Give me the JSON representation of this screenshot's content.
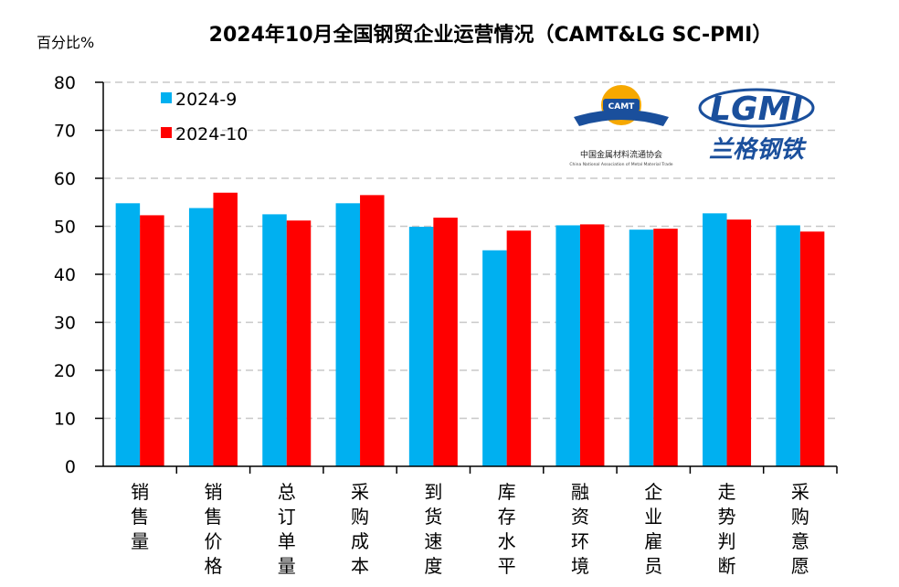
{
  "chart_data": {
    "type": "bar",
    "title": "2024年10月全国钢贸企业运营情况（CAMT&LG SC-PMI）",
    "ylabel": "百分比%",
    "xlabel": "",
    "ylim": [
      0,
      80
    ],
    "yticks": [
      0,
      10,
      20,
      30,
      40,
      50,
      60,
      70,
      80
    ],
    "grid": true,
    "legend_position": "top-left",
    "categories": [
      "销售量",
      "销售价格",
      "总订单量",
      "采购成本",
      "到货速度",
      "库存水平",
      "融资环境",
      "企业雇员",
      "走势判断",
      "采购意愿"
    ],
    "series": [
      {
        "name": "2024-9",
        "color": "#00B0F0",
        "values": [
          54.8,
          53.8,
          52.5,
          54.8,
          49.9,
          45.0,
          50.2,
          49.3,
          52.7,
          50.2
        ]
      },
      {
        "name": "2024-10",
        "color": "#FF0000",
        "values": [
          52.3,
          57.0,
          51.2,
          56.5,
          51.8,
          49.1,
          50.4,
          49.5,
          51.4,
          48.9
        ]
      }
    ]
  },
  "logos": {
    "camt": {
      "badge": "CAMT",
      "name_cn": "中国金属材料流通协会",
      "name_en": "China National Association of Metal Material Trade"
    },
    "lgmi": {
      "badge": "LGMI",
      "name_cn": "兰格钢铁"
    }
  }
}
